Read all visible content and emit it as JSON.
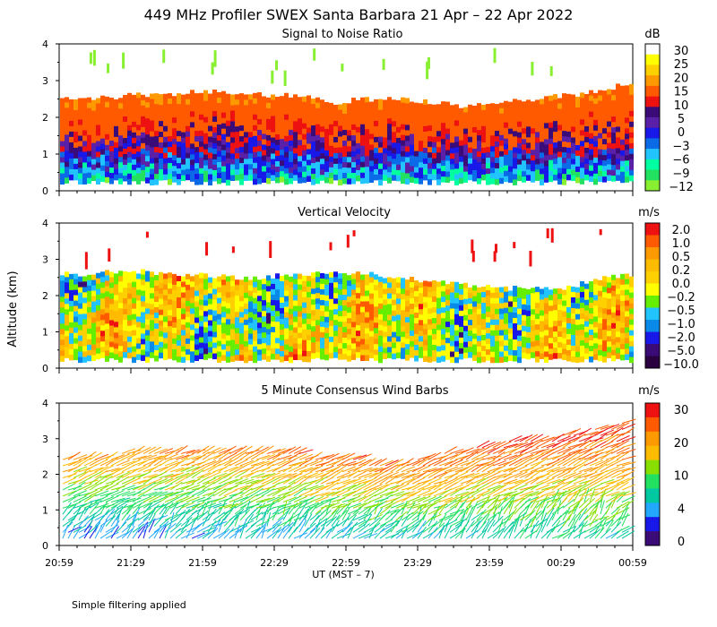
{
  "title": "449 MHz Profiler SWEX Santa Barbara 21 Apr – 22 Apr 2022",
  "ylabel": "Altitude (km)",
  "xlabel": "UT  (MST – 7)",
  "footnote": "Simple filtering applied",
  "x_ticks": [
    "20:59",
    "21:29",
    "21:59",
    "22:29",
    "22:59",
    "23:29",
    "23:59",
    "00:29",
    "00:59"
  ],
  "y_ticks": [
    "0",
    "1",
    "2",
    "3",
    "4"
  ],
  "chart_data": [
    {
      "type": "heatmap",
      "title": "Signal to Noise Ratio",
      "ylabel": "Altitude (km)",
      "ylim": [
        0,
        4
      ],
      "unit": "dB",
      "colorbar": {
        "labels": [
          "30",
          "25",
          "20",
          "15",
          "10",
          "5",
          "0",
          "−3",
          "−6",
          "−9",
          "−12"
        ],
        "colors": [
          "#ffffff",
          "#ffff00",
          "#ffd000",
          "#ff9900",
          "#ff5a00",
          "#ee1111",
          "#3b0c78",
          "#5a20a8",
          "#1818e8",
          "#0a6ae8",
          "#22c4ff",
          "#00ffa0",
          "#22e060",
          "#88f030"
        ]
      },
      "echo_top_km": [
        2.5,
        2.5,
        2.6,
        2.6,
        2.7,
        2.7,
        2.6,
        2.6,
        2.4,
        2.5,
        2.5,
        2.4,
        2.3,
        2.4,
        2.5,
        2.6,
        2.7,
        3.0
      ],
      "bottom_km": 0.3
    },
    {
      "type": "heatmap",
      "title": "Vertical Velocity",
      "ylim": [
        0,
        4
      ],
      "unit": "m/s",
      "colorbar": {
        "labels": [
          "2.0",
          "1.0",
          "0.5",
          "0.2",
          "0.0",
          "−0.2",
          "−0.5",
          "−1.0",
          "−2.0",
          "−5.0",
          "−10.0"
        ],
        "colors": [
          "#ee1111",
          "#ff5a00",
          "#ff9900",
          "#ffbb00",
          "#ffd000",
          "#ffff00",
          "#66ee00",
          "#22c4ff",
          "#0a8ae8",
          "#1818e8",
          "#3b0c78",
          "#2a0040"
        ]
      },
      "echo_top_km": [
        2.6,
        2.6,
        2.7,
        2.6,
        2.6,
        2.5,
        2.5,
        2.6,
        2.6,
        2.6,
        2.5,
        2.4,
        2.3,
        2.2,
        2.2,
        2.2,
        2.5,
        2.6
      ],
      "bottom_km": 0.3
    },
    {
      "type": "wind_barbs",
      "title": "5 Minute Consensus Wind Barbs",
      "ylim": [
        0,
        4
      ],
      "unit": "m/s",
      "colorbar": {
        "labels": [
          "30",
          "20",
          "10",
          "4",
          "0"
        ],
        "colors": [
          "#ee1111",
          "#ff5a00",
          "#ff9900",
          "#ffbb00",
          "#88e000",
          "#22e060",
          "#00c8a0",
          "#22a8ff",
          "#1818e8",
          "#3b0c78"
        ]
      },
      "echo_top_km": [
        2.5,
        2.5,
        2.6,
        2.6,
        2.6,
        2.6,
        2.6,
        2.6,
        2.5,
        2.4,
        2.3,
        2.5,
        2.7,
        2.9,
        3.0,
        3.1,
        3.3,
        3.5
      ],
      "bottom_km": 0.1
    }
  ]
}
